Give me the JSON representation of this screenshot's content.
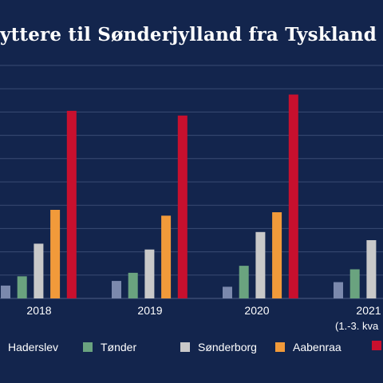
{
  "chart_data": {
    "type": "bar",
    "title": "yttere til Sønderjylland fra Tyskland",
    "categories": [
      "2018",
      "2019",
      "2020",
      "2021"
    ],
    "category_sublabels": [
      "",
      "",
      "",
      "(1.-3. kva"
    ],
    "ylim": [
      0,
      1000
    ],
    "grid": true,
    "legend_placement": "bottom",
    "series": [
      {
        "name": "Haderslev",
        "color": "#7b89ad",
        "values": [
          55,
          75,
          50,
          70
        ]
      },
      {
        "name": "Tønder",
        "color": "#6aa37f",
        "values": [
          95,
          110,
          140,
          125
        ]
      },
      {
        "name": "Sønderborg",
        "color": "#c9c9c9",
        "values": [
          235,
          210,
          285,
          250
        ]
      },
      {
        "name": "Aabenraa",
        "color": "#f19a3a",
        "values": [
          380,
          355,
          370,
          null
        ]
      },
      {
        "name": "",
        "color": "#c8102e",
        "values": [
          805,
          785,
          875,
          null
        ]
      }
    ]
  }
}
